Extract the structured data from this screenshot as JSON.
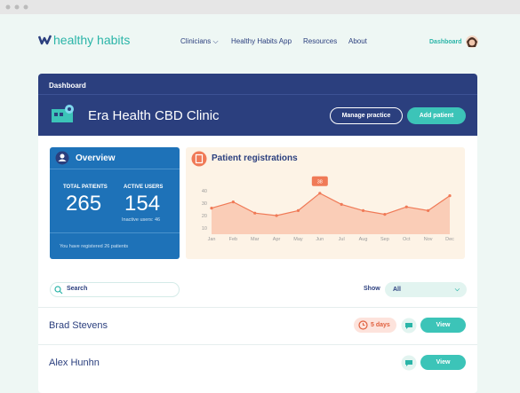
{
  "nav": {
    "logo": "healthy habits",
    "links": [
      "Clinicians",
      "Healthy Habits App",
      "Resources",
      "About"
    ],
    "account": "Dashboard"
  },
  "header": {
    "section": "Dashboard",
    "clinic": "Era Health CBD Clinic",
    "buttons": [
      "Manage practice",
      "Add patient"
    ]
  },
  "overview": {
    "title": "Overview",
    "stats": [
      {
        "label": "TOTAL PATIENTS",
        "value": "265"
      },
      {
        "label": "ACTIVE USERS",
        "value": "154",
        "note": "Inactive users: 46"
      }
    ],
    "footer": "You have registered 26 patients"
  },
  "chart_data": {
    "type": "area",
    "title": "Patient registrations",
    "categories": [
      "Jan",
      "Feb",
      "Mar",
      "Apr",
      "May",
      "Jun",
      "Jul",
      "Aug",
      "Sep",
      "Oct",
      "Nov",
      "Dec"
    ],
    "values": [
      26,
      31,
      22,
      20,
      24,
      38,
      29,
      24,
      21,
      27,
      24,
      36
    ],
    "value_labels": [
      null,
      null,
      null,
      null,
      null,
      "38",
      null,
      null,
      null,
      null,
      null,
      null
    ],
    "color": "#f07a57",
    "ylim": [
      5,
      45
    ],
    "yticks": [
      10,
      20,
      30,
      40
    ]
  },
  "search": {
    "placeholder": "Search",
    "filter_label": "Show",
    "filter_value": "All"
  },
  "patients": [
    {
      "name": "Brad Stevens",
      "badge": "5 days",
      "action": "View"
    },
    {
      "name": "Alex Hunhn",
      "action": "View"
    }
  ]
}
